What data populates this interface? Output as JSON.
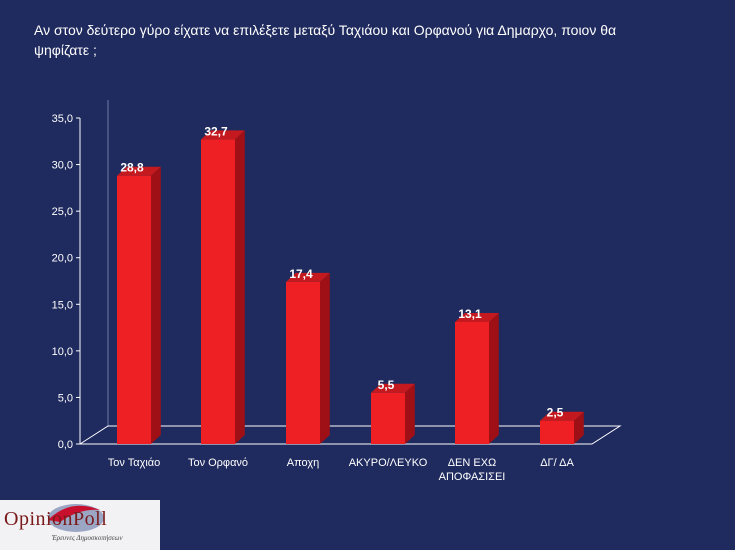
{
  "title": "Αν στον δεύτερο γύρο είχατε να επιλέξετε μεταξύ Ταχιάου και Ορφανού για Δημαρχο, ποιον θα ψηφίζατε ;",
  "colors": {
    "background": "#1f2a5e",
    "bar_front": "#ee2024",
    "bar_side": "#9e1016",
    "bar_top": "#c41a1f",
    "text": "#ffffff"
  },
  "logo": {
    "word": "OpinionPoll",
    "tagline": "Έρευνες Δημοσκοπήσεων"
  },
  "chart_data": {
    "type": "bar",
    "title": "Αν στον δεύτερο γύρο είχατε να επιλέξετε μεταξύ Ταχιάου και Ορφανού για Δημαρχο, ποιον θα ψηφίζατε ;",
    "categories": [
      "Τον Ταχιάο",
      "Τον Ορφανό",
      "Αποχη",
      "ΑΚΥΡΟ/ΛΕΥΚΟ",
      "ΔΕΝ ΕΧΩ ΑΠΟΦΑΣΙΣΕΙ",
      "ΔΓ/ ΔΑ"
    ],
    "values": [
      28.8,
      32.7,
      17.4,
      5.5,
      13.1,
      2.5
    ],
    "value_labels": [
      "28,8",
      "32,7",
      "17,4",
      "5,5",
      "13,1",
      "2,5"
    ],
    "yticks": [
      "0,0",
      "5,0",
      "10,0",
      "15,0",
      "20,0",
      "25,0",
      "30,0",
      "35,0"
    ],
    "ylim": [
      0,
      35
    ],
    "xlabel": "",
    "ylabel": "",
    "grid": false,
    "three_d": true
  }
}
